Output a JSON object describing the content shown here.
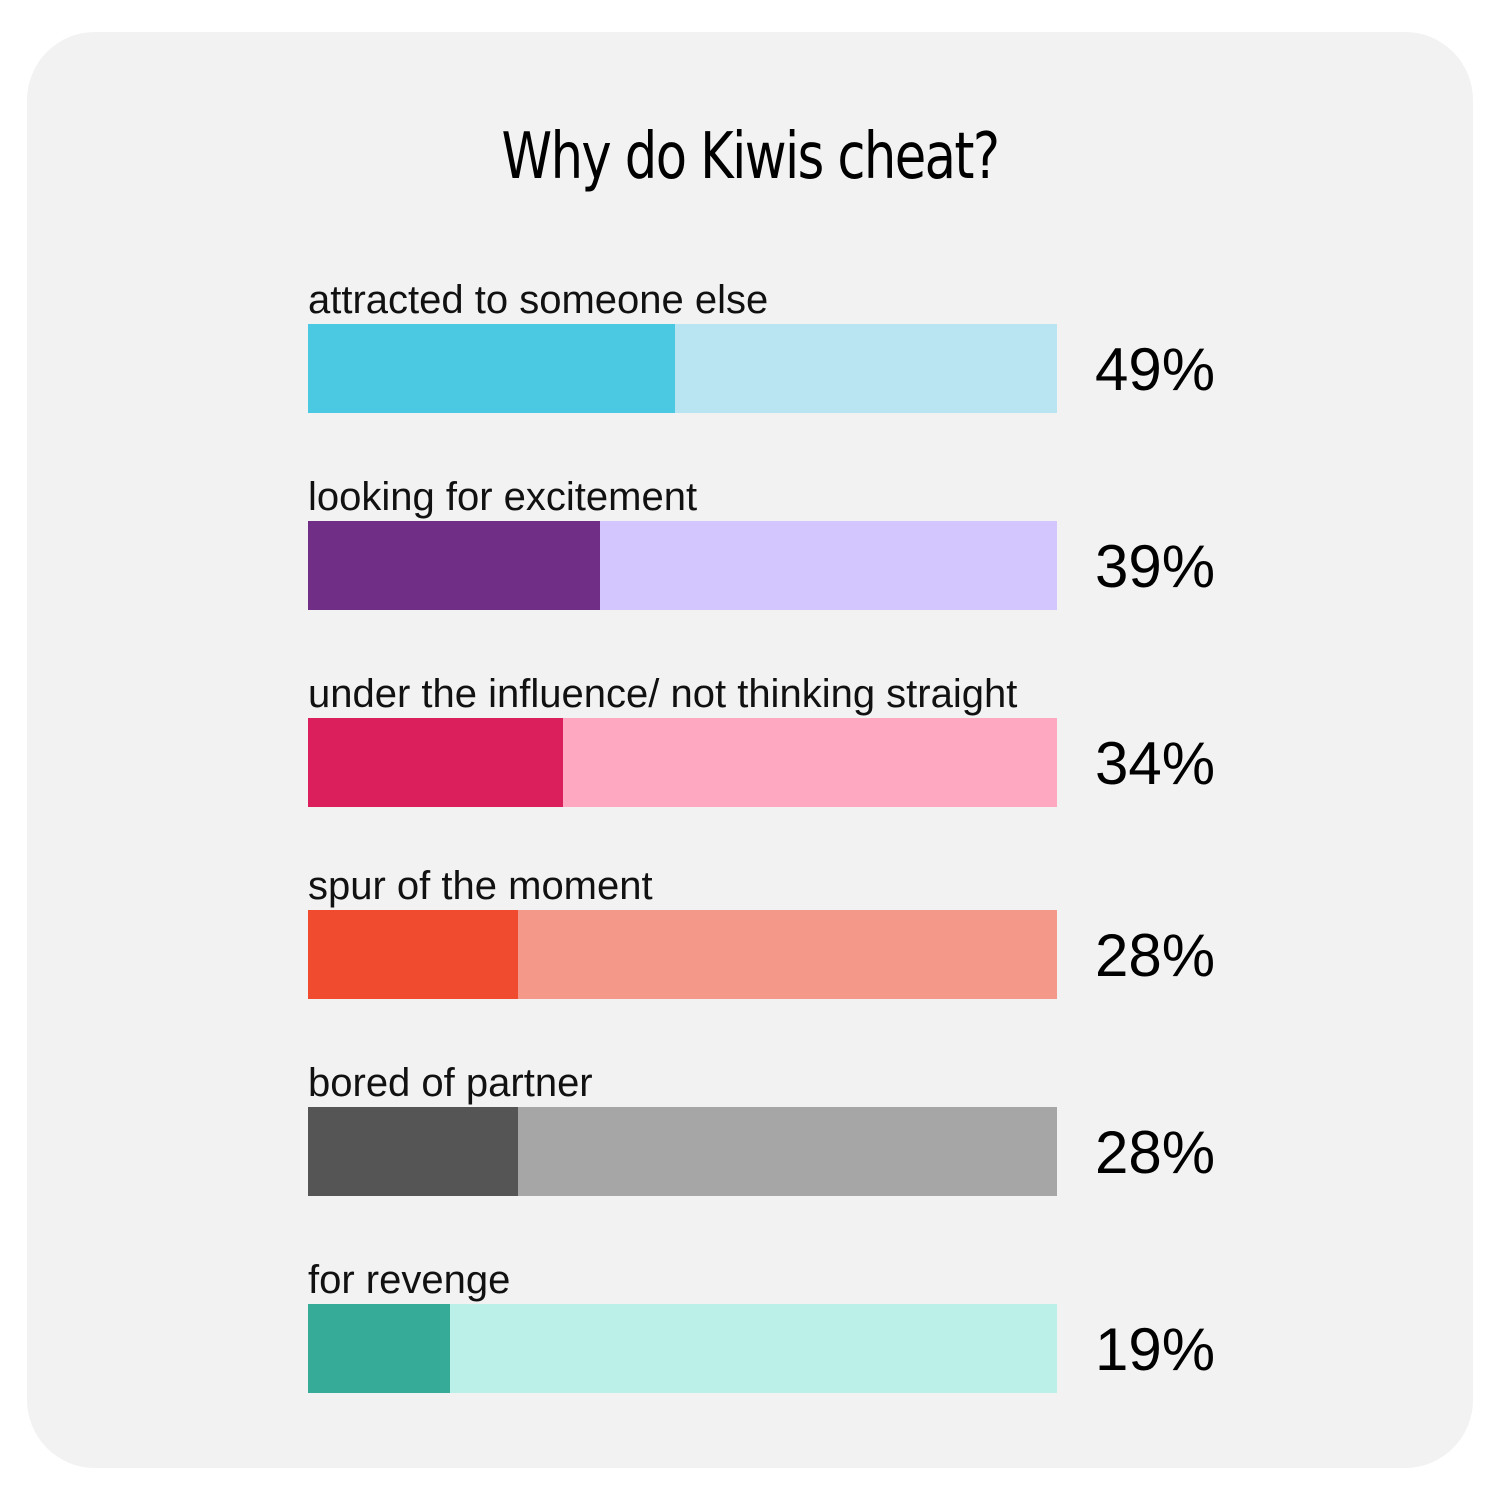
{
  "chart_data": {
    "type": "bar",
    "title": "Why do Kiwis cheat?",
    "xlim": [
      0,
      100
    ],
    "categories": [
      "attracted to someone else",
      "looking for excitement",
      "under the influence/ not thinking straight",
      "spur of the moment",
      "bored of partner",
      "for revenge"
    ],
    "values": [
      49,
      39,
      34,
      28,
      28,
      19
    ],
    "value_labels": [
      "49%",
      "39%",
      "34%",
      "28%",
      "28%",
      "19%"
    ],
    "colors": {
      "fill": [
        "#4bc9e2",
        "#702e87",
        "#db1e5c",
        "#f04a2f",
        "#555555",
        "#36ab98"
      ],
      "track": [
        "#b9e4f1",
        "#d3c6fe",
        "#fea8c2",
        "#f49989",
        "#a6a6a6",
        "#baf0e7"
      ],
      "background": "#f2f2f2"
    },
    "legend": "none",
    "grid": false
  }
}
